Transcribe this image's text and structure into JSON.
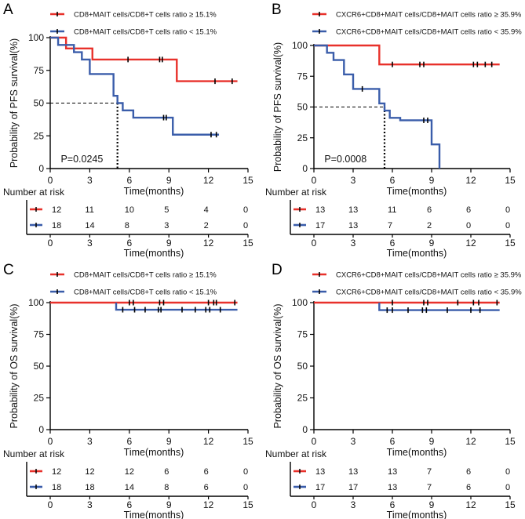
{
  "chart_data": [
    {
      "type": "line",
      "panel": "A",
      "ylabel": "Probability of PFS survival(%)",
      "xlabel": "Time(months)",
      "xlim": [
        0,
        15
      ],
      "ylim": [
        0,
        100
      ],
      "xticks": [
        0,
        3,
        6,
        9,
        12,
        15
      ],
      "yticks": [
        0,
        25,
        50,
        75,
        100
      ],
      "p_value": "P=0.0245",
      "median_line": {
        "x": 5.1,
        "y": 50
      },
      "series": [
        {
          "name": "CD8+MAIT cells/CD8+T cells ratio ≥ 15.1%",
          "color": "#e8312b",
          "steps": [
            [
              0,
              100
            ],
            [
              1.2,
              91.7
            ],
            [
              3.2,
              83.3
            ],
            [
              9.6,
              66.7
            ],
            [
              14.2,
              66.7
            ]
          ],
          "censors": [
            [
              5.9,
              83.3
            ],
            [
              8.3,
              83.3
            ],
            [
              8.5,
              83.3
            ],
            [
              12.5,
              66.7
            ],
            [
              13.8,
              66.7
            ]
          ]
        },
        {
          "name": "CD8+MAIT cells/CD8+T cells ratio < 15.1%",
          "color": "#3a5daa",
          "steps": [
            [
              0,
              100
            ],
            [
              0.6,
              94.4
            ],
            [
              1.8,
              88.9
            ],
            [
              2.4,
              83.3
            ],
            [
              3.0,
              72.2
            ],
            [
              4.8,
              55.6
            ],
            [
              5.1,
              50
            ],
            [
              5.5,
              44.4
            ],
            [
              6.3,
              38.9
            ],
            [
              9.3,
              25.9
            ],
            [
              12.8,
              25.9
            ]
          ],
          "censors": [
            [
              8.6,
              38.9
            ],
            [
              8.8,
              38.9
            ],
            [
              12.2,
              25.9
            ],
            [
              12.6,
              25.9
            ]
          ]
        }
      ],
      "risk_table": {
        "title": "Number at risk",
        "times": [
          0,
          3,
          6,
          9,
          12,
          15
        ],
        "rows": [
          {
            "color": "#e8312b",
            "counts": [
              "12",
              "11",
              "10",
              "5",
              "4",
              "0"
            ]
          },
          {
            "color": "#3a5daa",
            "counts": [
              "18",
              "14",
              "8",
              "3",
              "2",
              "0"
            ]
          }
        ],
        "xlabel": "Time(months)"
      }
    },
    {
      "type": "line",
      "panel": "B",
      "ylabel": "Probability of PFS survival(%)",
      "xlabel": "Time(months)",
      "xlim": [
        0,
        15
      ],
      "ylim": [
        0,
        100
      ],
      "xticks": [
        0,
        3,
        6,
        9,
        12,
        15
      ],
      "yticks": [
        0,
        25,
        50,
        75,
        100
      ],
      "p_value": "P=0.0008",
      "median_line": {
        "x": 5.4,
        "y": 50
      },
      "series": [
        {
          "name": "CXCR6+CD8+MAIT cells/CD8+MAIT cells ratio ≥ 35.9%",
          "color": "#e8312b",
          "steps": [
            [
              0,
              100
            ],
            [
              5.0,
              84.6
            ],
            [
              14.2,
              84.6
            ]
          ],
          "censors": [
            [
              6.0,
              84.6
            ],
            [
              8.1,
              84.6
            ],
            [
              8.4,
              84.6
            ],
            [
              12.2,
              84.6
            ],
            [
              12.5,
              84.6
            ],
            [
              13.1,
              84.6
            ],
            [
              13.6,
              84.6
            ]
          ]
        },
        {
          "name": "CXCR6+CD8+MAIT cells/CD8+MAIT cells ratio < 35.9%",
          "color": "#3a5daa",
          "steps": [
            [
              0,
              100
            ],
            [
              1.0,
              94.1
            ],
            [
              1.5,
              88.2
            ],
            [
              2.3,
              76.5
            ],
            [
              3.0,
              64.7
            ],
            [
              5.0,
              52.9
            ],
            [
              5.4,
              47.1
            ],
            [
              5.8,
              41.2
            ],
            [
              6.6,
              39.2
            ],
            [
              9.0,
              19.6
            ],
            [
              9.6,
              0
            ],
            [
              9.6,
              0
            ]
          ],
          "censors": [
            [
              3.7,
              64.7
            ],
            [
              8.4,
              39.2
            ],
            [
              8.7,
              39.2
            ]
          ]
        }
      ],
      "risk_table": {
        "title": "Number at risk",
        "times": [
          0,
          3,
          6,
          9,
          12,
          15
        ],
        "rows": [
          {
            "color": "#e8312b",
            "counts": [
              "13",
              "13",
              "11",
              "6",
              "6",
              "0"
            ]
          },
          {
            "color": "#3a5daa",
            "counts": [
              "17",
              "13",
              "7",
              "2",
              "0",
              "0"
            ]
          }
        ],
        "xlabel": "Time(months)"
      }
    },
    {
      "type": "line",
      "panel": "C",
      "ylabel": "Probability of OS survival(%)",
      "xlabel": "Time(months)",
      "xlim": [
        0,
        15
      ],
      "ylim": [
        0,
        100
      ],
      "xticks": [
        0,
        3,
        6,
        9,
        12,
        15
      ],
      "yticks": [
        0,
        25,
        50,
        75,
        100
      ],
      "p_value": "",
      "median_line": null,
      "series": [
        {
          "name": "CD8+MAIT cells/CD8+T cells ratio ≥ 15.1%",
          "color": "#e8312b",
          "steps": [
            [
              0,
              100
            ],
            [
              14.2,
              100
            ]
          ],
          "censors": [
            [
              6.0,
              100
            ],
            [
              6.3,
              100
            ],
            [
              8.3,
              100
            ],
            [
              8.6,
              100
            ],
            [
              12.0,
              100
            ],
            [
              12.4,
              100
            ],
            [
              12.6,
              100
            ],
            [
              14.0,
              100
            ]
          ]
        },
        {
          "name": "CD8+MAIT cells/CD8+T cells ratio < 15.1%",
          "color": "#3a5daa",
          "steps": [
            [
              5.0,
              100
            ],
            [
              5.0,
              94.4
            ],
            [
              14.2,
              94.4
            ]
          ],
          "censors": [
            [
              5.5,
              94.4
            ],
            [
              6.4,
              94.4
            ],
            [
              7.2,
              94.4
            ],
            [
              8.2,
              94.4
            ],
            [
              8.4,
              94.4
            ],
            [
              10.0,
              94.4
            ],
            [
              11.0,
              94.4
            ],
            [
              11.8,
              94.4
            ],
            [
              12.1,
              94.4
            ],
            [
              12.9,
              94.4
            ]
          ]
        }
      ],
      "risk_table": {
        "title": "Number at risk",
        "times": [
          0,
          3,
          6,
          9,
          12,
          15
        ],
        "rows": [
          {
            "color": "#e8312b",
            "counts": [
              "12",
              "12",
              "12",
              "6",
              "6",
              "0"
            ]
          },
          {
            "color": "#3a5daa",
            "counts": [
              "18",
              "18",
              "14",
              "8",
              "6",
              "0"
            ]
          }
        ],
        "xlabel": "Time(months)"
      }
    },
    {
      "type": "line",
      "panel": "D",
      "ylabel": "Probability of OS survival(%)",
      "xlabel": "Time(months)",
      "xlim": [
        0,
        15
      ],
      "ylim": [
        0,
        100
      ],
      "xticks": [
        0,
        3,
        6,
        9,
        12,
        15
      ],
      "yticks": [
        0,
        25,
        50,
        75,
        100
      ],
      "p_value": "",
      "median_line": null,
      "series": [
        {
          "name": "CXCR6+CD8+MAIT cells/CD8+MAIT cells ratio ≥ 35.9%",
          "color": "#e8312b",
          "steps": [
            [
              0,
              100
            ],
            [
              14.2,
              100
            ]
          ],
          "censors": [
            [
              6.0,
              100
            ],
            [
              8.4,
              100
            ],
            [
              8.7,
              100
            ],
            [
              11.0,
              100
            ],
            [
              12.2,
              100
            ],
            [
              12.6,
              100
            ],
            [
              14.0,
              100
            ]
          ]
        },
        {
          "name": "CXCR6+CD8+MAIT cells/CD8+MAIT cells ratio < 35.9%",
          "color": "#3a5daa",
          "steps": [
            [
              5.0,
              100
            ],
            [
              5.0,
              94.1
            ],
            [
              14.2,
              94.1
            ]
          ],
          "censors": [
            [
              5.6,
              94.1
            ],
            [
              6.0,
              94.1
            ],
            [
              7.2,
              94.1
            ],
            [
              8.3,
              94.1
            ],
            [
              8.6,
              94.1
            ],
            [
              10.2,
              94.1
            ],
            [
              12.0,
              94.1
            ],
            [
              12.7,
              94.1
            ]
          ]
        }
      ],
      "risk_table": {
        "title": "Number at risk",
        "times": [
          0,
          3,
          6,
          9,
          12,
          15
        ],
        "rows": [
          {
            "color": "#e8312b",
            "counts": [
              "13",
              "13",
              "13",
              "7",
              "6",
              "0"
            ]
          },
          {
            "color": "#3a5daa",
            "counts": [
              "17",
              "17",
              "13",
              "7",
              "6",
              "0"
            ]
          }
        ],
        "xlabel": "Time(months)"
      }
    }
  ]
}
